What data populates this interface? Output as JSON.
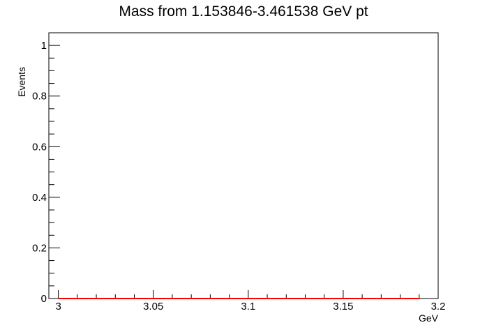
{
  "chart_data": {
    "type": "line",
    "title": "Mass from 1.153846-3.461538 GeV pt",
    "xlabel": "GeV",
    "ylabel": "Events",
    "xlim": [
      2.995,
      3.2
    ],
    "ylim": [
      0,
      1.05
    ],
    "x_ticks": [
      {
        "value": 3.0,
        "label": "3"
      },
      {
        "value": 3.05,
        "label": "3.05"
      },
      {
        "value": 3.1,
        "label": "3.1"
      },
      {
        "value": 3.15,
        "label": "3.15"
      },
      {
        "value": 3.2,
        "label": "3.2"
      }
    ],
    "y_ticks": [
      {
        "value": 0,
        "label": "0"
      },
      {
        "value": 0.2,
        "label": "0.2"
      },
      {
        "value": 0.4,
        "label": "0.4"
      },
      {
        "value": 0.6,
        "label": "0.6"
      },
      {
        "value": 0.8,
        "label": "0.8"
      },
      {
        "value": 1.0,
        "label": "1"
      }
    ],
    "grid": false,
    "series": [
      {
        "color": "#ff0000",
        "x": [
          3.0,
          3.19
        ],
        "y": [
          0,
          0
        ]
      }
    ]
  }
}
